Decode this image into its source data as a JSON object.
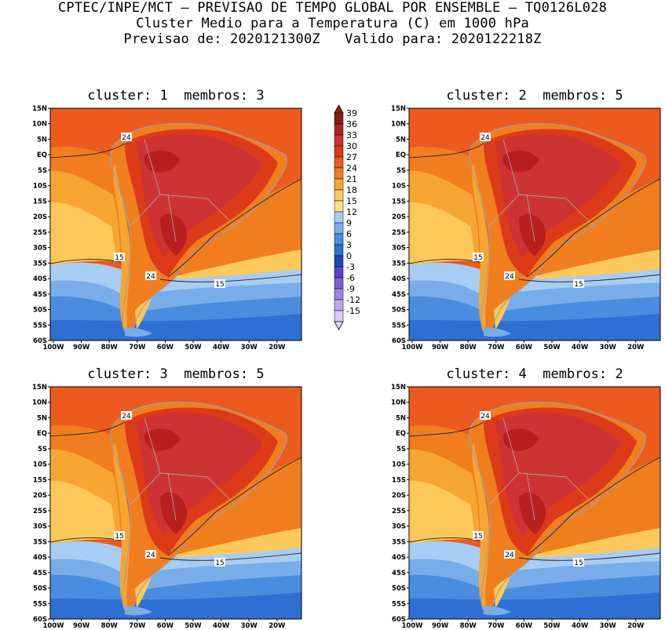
{
  "header": {
    "line1": "CPTEC/INPE/MCT – PREVISAO DE TEMPO GLOBAL POR ENSEMBLE – TQ0126L028",
    "line2": "Cluster Medio para a Temperatura (C) em 1000 hPa",
    "line3": "Previsao de: 2020121300Z   Valido para: 2020122218Z"
  },
  "panels": [
    {
      "title": "cluster: 1  membros: 3",
      "labels": [
        "24",
        "15",
        "24",
        "15"
      ]
    },
    {
      "title": "cluster: 2  membros: 5",
      "labels": [
        "24",
        "15",
        "24",
        "15"
      ]
    },
    {
      "title": "cluster: 3  membros: 5",
      "labels": [
        "24",
        "15",
        "24",
        "15"
      ]
    },
    {
      "title": "cluster: 4  membros: 2",
      "labels": [
        "24",
        "15",
        "24",
        "15"
      ]
    }
  ],
  "axes": {
    "lat_ticks": [
      "15N",
      "10N",
      "5N",
      "EQ",
      "5S",
      "10S",
      "15S",
      "20S",
      "25S",
      "30S",
      "35S",
      "40S",
      "45S",
      "50S",
      "55S",
      "60S"
    ],
    "lon_ticks": [
      "100W",
      "90W",
      "80W",
      "70W",
      "60W",
      "50W",
      "40W",
      "30W",
      "20W"
    ]
  },
  "colorbar": {
    "labels": [
      "39",
      "36",
      "33",
      "30",
      "27",
      "24",
      "21",
      "18",
      "15",
      "12",
      "9",
      "6",
      "3",
      "0",
      "-3",
      "-6",
      "-9",
      "-12",
      "-15"
    ],
    "colors": [
      "#8b1a1a",
      "#b22222",
      "#cd3333",
      "#dc3a18",
      "#ec5a1e",
      "#f07e1e",
      "#f7a532",
      "#fcc85a",
      "#fde08c",
      "#a8cdf5",
      "#78adea",
      "#4a8de0",
      "#2e6fd4",
      "#2244b8",
      "#5b3fcf",
      "#7a5fd8",
      "#9b85e0",
      "#bba8ea",
      "#d8ccf2"
    ],
    "top_color": "#a11818",
    "bottom_color": "#e6ddf5"
  },
  "palette": {
    "c36": "#b82020",
    "c33": "#cd3333",
    "c30": "#dc3a18",
    "c27": "#ec5a1e",
    "c24": "#f07e1e",
    "c21": "#f7a532",
    "c18": "#fcc85a",
    "c15": "#fde08c",
    "c12": "#a8cdf5",
    "c9": "#78adea",
    "c6": "#4a8de0",
    "c3": "#2e6fd4"
  }
}
